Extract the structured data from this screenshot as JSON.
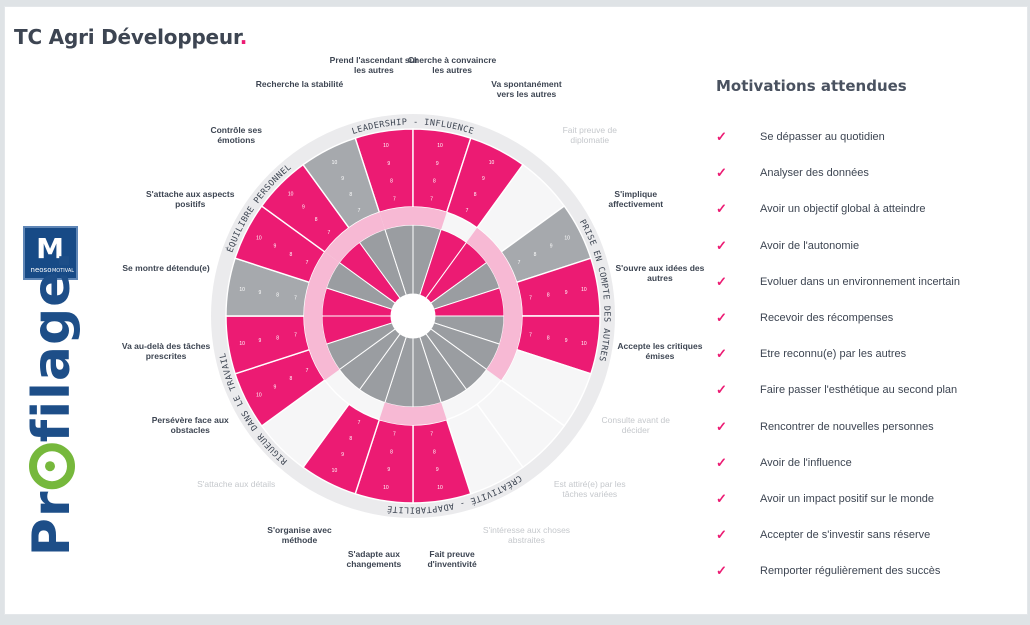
{
  "header": {
    "title": "TC Agri Développeur",
    "title_dot": "."
  },
  "logo": {
    "brand": "Profilage.",
    "badge_top": "neoso",
    "badge_bottom": "MOTIVAL"
  },
  "wheel": {
    "quadrants": [
      "LEADERSHIP - INFLUENCE",
      "PRISE EN COMPTE DES AUTRES",
      "CRÉATIVITÉ - ADAPTABILITÉ",
      "RIGUEUR DANS LE TRAVAIL",
      "ÉQUILIBRE PERSONNEL"
    ],
    "items": [
      {
        "label": "Prend l'ascendant sur les autres",
        "value": 7,
        "type": "p"
      },
      {
        "label": "Cherche à convaincre les autres",
        "value": 7,
        "type": "p"
      },
      {
        "label": "Va spontanément vers les autres",
        "value": 7,
        "type": "p"
      },
      {
        "label": "Fait preuve de diplomatie",
        "value": 0,
        "type": "e"
      },
      {
        "label": "S'implique affectivement",
        "value": 7,
        "type": "g"
      },
      {
        "label": "S'ouvre aux idées des autres",
        "value": 7,
        "type": "p"
      },
      {
        "label": "Accepte les critiques émises",
        "value": 7,
        "type": "p"
      },
      {
        "label": "Consulte avant de décider",
        "value": 0,
        "type": "e"
      },
      {
        "label": "Est attiré(e) par les tâches variées",
        "value": 0,
        "type": "e"
      },
      {
        "label": "S'intéresse aux choses abstraites",
        "value": 0,
        "type": "e"
      },
      {
        "label": "Fait preuve d'inventivité",
        "value": 7,
        "type": "p"
      },
      {
        "label": "S'adapte aux changements",
        "value": 7,
        "type": "p"
      },
      {
        "label": "S'organise avec méthode",
        "value": 7,
        "type": "p"
      },
      {
        "label": "S'attache aux détails",
        "value": 0,
        "type": "e"
      },
      {
        "label": "Persévère face aux obstacles",
        "value": 7,
        "type": "p"
      },
      {
        "label": "Va au-delà des tâches prescrites",
        "value": 7,
        "type": "p"
      },
      {
        "label": "Se montre détendu(e)",
        "value": 7,
        "type": "g"
      },
      {
        "label": "S'attache aux aspects positifs",
        "value": 7,
        "type": "p"
      },
      {
        "label": "Contrôle ses émotions",
        "value": 7,
        "type": "p"
      },
      {
        "label": "Recherche la stabilité",
        "value": 7,
        "type": "g"
      }
    ]
  },
  "motivations": {
    "title": "Motivations attendues",
    "items": [
      "Se dépasser au quotidien",
      "Analyser des données",
      "Avoir un objectif global à atteindre",
      "Avoir de l'autonomie",
      "Evoluer dans un environnement incertain",
      "Recevoir des récompenses",
      "Etre reconnu(e) par les autres",
      "Faire passer l'esthétique au second plan",
      "Rencontrer de nouvelles personnes",
      "Avoir de l'influence",
      "Avoir un impact positif sur le monde",
      "Accepter de s'investir sans réserve",
      "Remporter régulièrement des succès"
    ]
  },
  "colors": {
    "pink": "#ec1b73",
    "light_pink": "#f7b9d4",
    "gray": "#a6a9ad",
    "dark_gray": "#9a9da1",
    "rim": "#ebebed",
    "navy": "#1d4e88",
    "green": "#76b83c"
  }
}
